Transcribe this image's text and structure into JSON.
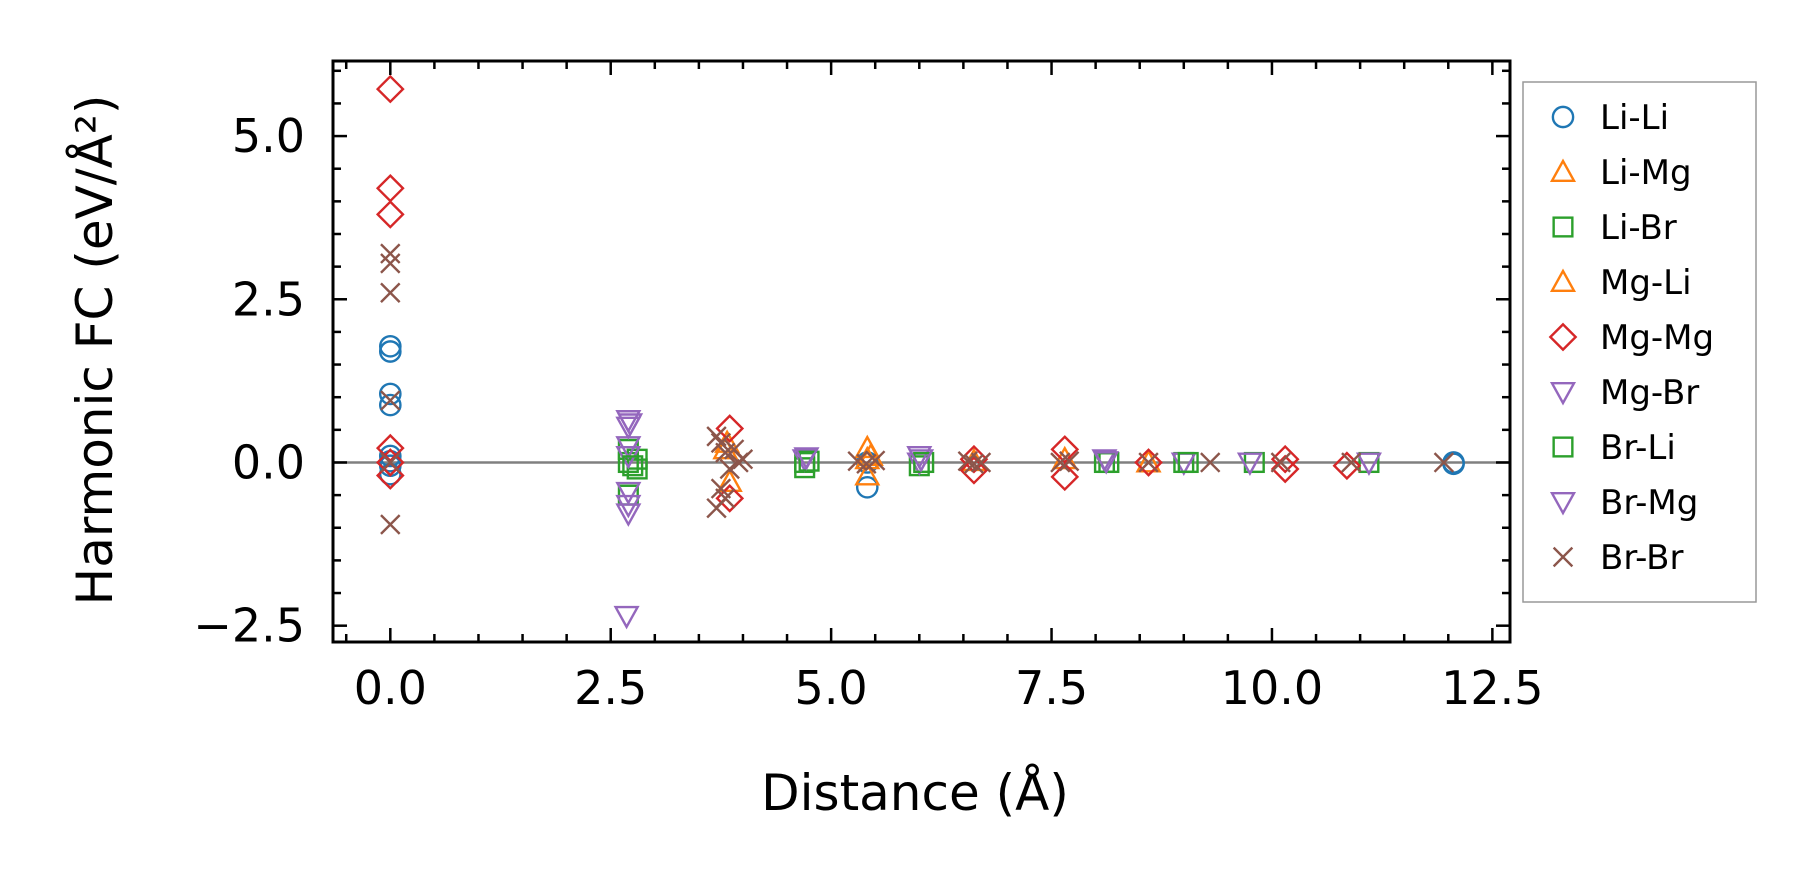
{
  "chart_data": {
    "type": "scatter",
    "title": "",
    "xlabel": "Distance (Å)",
    "ylabel": "Harmonic FC (eV/Å²)",
    "xlim": [
      -0.65,
      12.7
    ],
    "ylim": [
      -2.75,
      6.15
    ],
    "xticks": [
      0.0,
      2.5,
      5.0,
      7.5,
      10.0,
      12.5
    ],
    "xtick_labels": [
      "0.0",
      "2.5",
      "5.0",
      "7.5",
      "10.0",
      "12.5"
    ],
    "yticks": [
      -2.5,
      0.0,
      2.5,
      5.0
    ],
    "ytick_labels": [
      "−2.5",
      "0.0",
      "2.5",
      "5.0"
    ],
    "zero_line": true,
    "grid": false,
    "legend_placement": "outside-right",
    "series": [
      {
        "name": "Li-Li",
        "marker": "circle",
        "color": "#1f77b4",
        "x": [
          0,
          0,
          0,
          0,
          0,
          0,
          0,
          0,
          5.41,
          5.41,
          12.06,
          12.06
        ],
        "y": [
          1.78,
          1.7,
          1.05,
          0.88,
          0.1,
          0.02,
          -0.05,
          -0.18,
          -0.38,
          0.0,
          0.0,
          -0.02
        ]
      },
      {
        "name": "Li-Mg",
        "marker": "triangle-up",
        "color": "#ff7f0e",
        "x": [
          3.8,
          3.85,
          5.41,
          5.41,
          5.41,
          6.62,
          8.6
        ],
        "y": [
          0.2,
          -0.3,
          0.22,
          0.05,
          -0.2,
          0.02,
          0.0
        ]
      },
      {
        "name": "Li-Br",
        "marker": "square",
        "color": "#2ca02c",
        "x": [
          2.7,
          2.7,
          2.7,
          2.8,
          2.8,
          4.7,
          4.7,
          6.0,
          8.1,
          9.0,
          9.8,
          11.1
        ],
        "y": [
          0.2,
          0.0,
          -0.5,
          0.05,
          -0.1,
          0.0,
          -0.08,
          -0.05,
          0.0,
          0.0,
          0.0,
          0.0
        ]
      },
      {
        "name": "Mg-Li",
        "marker": "triangle-up",
        "color": "#ff7f0e",
        "x": [
          3.82,
          5.45,
          7.65
        ],
        "y": [
          0.3,
          0.1,
          0.05
        ]
      },
      {
        "name": "Mg-Mg",
        "marker": "diamond",
        "color": "#d62728",
        "x": [
          0,
          0,
          0,
          0,
          0,
          0,
          3.85,
          3.85,
          6.62,
          6.62,
          7.65,
          7.65,
          8.6,
          10.15,
          10.15,
          10.85
        ],
        "y": [
          5.72,
          4.2,
          3.8,
          0.22,
          -0.2,
          0.0,
          0.52,
          -0.55,
          0.05,
          -0.12,
          0.2,
          -0.22,
          0.0,
          0.05,
          -0.1,
          -0.05
        ]
      },
      {
        "name": "Mg-Br",
        "marker": "triangle-down",
        "color": "#9467bd",
        "x": [
          2.7,
          2.7,
          2.7,
          2.7,
          2.7,
          2.7,
          2.7,
          4.7,
          6.0,
          6.0,
          8.1,
          9.0,
          9.75,
          11.1
        ],
        "y": [
          0.65,
          0.55,
          0.25,
          0.1,
          -0.45,
          -0.65,
          -0.78,
          0.05,
          0.1,
          0.0,
          0.05,
          0.0,
          0.0,
          0.0
        ]
      },
      {
        "name": "Br-Li",
        "marker": "square",
        "color": "#2ca02c",
        "x": [
          2.75,
          4.75,
          6.05,
          8.15,
          9.05
        ],
        "y": [
          -0.05,
          0.02,
          0.0,
          0.0,
          0.0
        ]
      },
      {
        "name": "Br-Mg",
        "marker": "triangle-down",
        "color": "#9467bd",
        "x": [
          2.68,
          2.72,
          4.72,
          6.02,
          8.12
        ],
        "y": [
          -2.35,
          0.6,
          0.08,
          0.05,
          0.02
        ]
      },
      {
        "name": "Br-Br",
        "marker": "x",
        "color": "#8c564b",
        "x": [
          0,
          0,
          0,
          0,
          0,
          0,
          3.7,
          3.75,
          3.8,
          3.85,
          3.9,
          3.95,
          4.0,
          3.75,
          3.8,
          3.7,
          5.3,
          5.4,
          5.5,
          6.55,
          6.62,
          6.7,
          7.6,
          7.7,
          8.6,
          9.3,
          10.1,
          10.9,
          11.95
        ],
        "y": [
          3.2,
          3.05,
          2.6,
          0.95,
          0.0,
          -0.95,
          0.4,
          0.3,
          0.15,
          -0.1,
          0.2,
          0.0,
          0.05,
          -0.4,
          -0.55,
          -0.7,
          0.02,
          -0.02,
          0.03,
          0.02,
          -0.02,
          0.0,
          0.0,
          0.02,
          0.0,
          0.0,
          0.0,
          0.0,
          0.0
        ]
      }
    ]
  }
}
